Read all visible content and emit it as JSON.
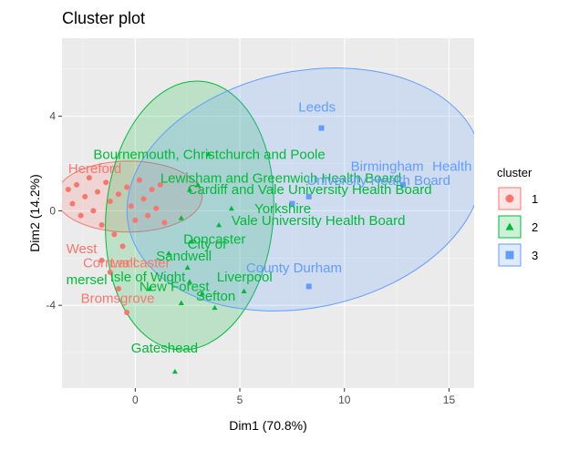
{
  "chart_data": {
    "type": "scatter",
    "title": "Cluster plot",
    "xlabel": "Dim1 (70.8%)",
    "ylabel": "Dim2 (14.2%)",
    "xlim": [
      -3.5,
      16.2
    ],
    "ylim": [
      -7.5,
      7.3
    ],
    "x_ticks": [
      0,
      5,
      10,
      15
    ],
    "y_ticks": [
      -4,
      0,
      4
    ],
    "grid": true,
    "legend": {
      "title": "cluster",
      "position": "right",
      "entries": [
        "1",
        "2",
        "3"
      ]
    },
    "colors": {
      "1": "#F8766D",
      "2": "#00BA38",
      "3": "#619CFF"
    },
    "series": [
      {
        "name": "1",
        "ellipse": {
          "cx": -0.3,
          "cy": 0.6,
          "rx": 3.5,
          "ry": 1.5,
          "angle": 0
        },
        "points": [
          {
            "x": -3.2,
            "y": 0.9
          },
          {
            "x": -3.0,
            "y": 0.3
          },
          {
            "x": -2.8,
            "y": 1.1
          },
          {
            "x": -2.6,
            "y": -0.2
          },
          {
            "x": -2.4,
            "y": 0.6
          },
          {
            "x": -2.2,
            "y": 1.4
          },
          {
            "x": -2.0,
            "y": 0.0
          },
          {
            "x": -1.8,
            "y": 0.8
          },
          {
            "x": -1.6,
            "y": -0.6
          },
          {
            "x": -1.4,
            "y": 1.2
          },
          {
            "x": -1.2,
            "y": 0.4
          },
          {
            "x": -1.0,
            "y": -1.0
          },
          {
            "x": -0.8,
            "y": 0.7
          },
          {
            "x": -0.6,
            "y": -1.5
          },
          {
            "x": -0.4,
            "y": 1.0
          },
          {
            "x": -0.2,
            "y": 0.2
          },
          {
            "x": 0.0,
            "y": -0.4
          },
          {
            "x": 0.2,
            "y": 1.3
          },
          {
            "x": 0.4,
            "y": 0.5
          },
          {
            "x": 0.6,
            "y": -0.2
          },
          {
            "x": 0.8,
            "y": 0.9
          },
          {
            "x": 1.0,
            "y": 0.1
          },
          {
            "x": 1.2,
            "y": 1.1
          },
          {
            "x": 1.4,
            "y": -0.5
          },
          {
            "x": -1.6,
            "y": -2.1
          },
          {
            "x": -1.2,
            "y": -2.6
          },
          {
            "x": -0.8,
            "y": -3.3
          },
          {
            "x": -0.4,
            "y": -4.3
          }
        ],
        "labels": [
          {
            "text": "Hereford",
            "x": -3.2,
            "y": 1.6
          },
          {
            "text": "West",
            "x": -3.3,
            "y": -1.8
          },
          {
            "text": "Cornwall",
            "x": -2.5,
            "y": -2.4
          },
          {
            "text": "Lancaster",
            "x": -1.2,
            "y": -2.4
          },
          {
            "text": "Bromsgrove",
            "x": -2.6,
            "y": -3.9
          }
        ]
      },
      {
        "name": "2",
        "ellipse": {
          "cx": 2.6,
          "cy": -0.2,
          "rx": 4.0,
          "ry": 5.7,
          "angle": -5
        },
        "points": [
          {
            "x": 3.5,
            "y": 2.4
          },
          {
            "x": 3.0,
            "y": 1.1
          },
          {
            "x": 2.6,
            "y": 0.9
          },
          {
            "x": 4.6,
            "y": 0.1
          },
          {
            "x": 2.2,
            "y": -0.3
          },
          {
            "x": 4.0,
            "y": -0.6
          },
          {
            "x": 2.7,
            "y": -1.3
          },
          {
            "x": 1.6,
            "y": -1.8
          },
          {
            "x": 2.5,
            "y": -2.4
          },
          {
            "x": 2.6,
            "y": -3.0
          },
          {
            "x": 5.2,
            "y": -3.4
          },
          {
            "x": 3.2,
            "y": -3.5
          },
          {
            "x": 0.7,
            "y": -3.3
          },
          {
            "x": 2.2,
            "y": -3.9
          },
          {
            "x": 3.8,
            "y": -4.1
          },
          {
            "x": 1.9,
            "y": -6.8
          }
        ],
        "labels": [
          {
            "text": "Bournemouth, Christchurch and Poole",
            "x": -2.0,
            "y": 2.2
          },
          {
            "text": "Doncaster",
            "x": 2.3,
            "y": -1.4
          },
          {
            "text": "Sandwell",
            "x": 1.0,
            "y": -2.1
          },
          {
            "text": "mersel",
            "x": -3.3,
            "y": -3.1
          },
          {
            "text": "Isle of Wight",
            "x": -1.2,
            "y": -3.0
          },
          {
            "text": "Liverpool",
            "x": 3.9,
            "y": -3.0
          },
          {
            "text": "New Forest",
            "x": 0.2,
            "y": -3.4
          },
          {
            "text": "Sefton",
            "x": 2.9,
            "y": -3.8
          },
          {
            "text": "Gateshead",
            "x": -0.2,
            "y": -6.0
          }
        ]
      },
      {
        "name": "3",
        "ellipse": {
          "cx": 8.1,
          "cy": 0.9,
          "rx": 8.6,
          "ry": 5.0,
          "angle": 12
        },
        "points": [
          {
            "x": 8.9,
            "y": 3.5
          },
          {
            "x": 12.8,
            "y": 1.1
          },
          {
            "x": 8.3,
            "y": 0.6
          },
          {
            "x": 7.5,
            "y": 0.3
          },
          {
            "x": 8.3,
            "y": -3.2
          }
        ],
        "labels": [
          {
            "text": "Leeds",
            "x": 7.8,
            "y": 4.2
          },
          {
            "text": "Birmingham",
            "x": 10.3,
            "y": 1.7
          },
          {
            "text": "County Durham",
            "x": 5.3,
            "y": -2.6
          }
        ]
      }
    ],
    "overplotted_labels": [
      {
        "text": "Lewisham and Greenwich Health Board",
        "color": "#00BA38",
        "x": 1.2,
        "y": 1.2
      },
      {
        "text": "Cardiff and Vale University Health Board",
        "color": "#00BA38",
        "x": 2.5,
        "y": 0.7
      },
      {
        "text": "Vale University Health Board",
        "color": "#00BA38",
        "x": 4.6,
        "y": -0.6
      },
      {
        "text": "Yorkshire",
        "color": "#00BA38",
        "x": 5.7,
        "y": -0.1
      },
      {
        "text": "University Health Board",
        "color": "#619CFF",
        "x": 8.2,
        "y": 1.1
      },
      {
        "text": "Health B",
        "color": "#619CFF",
        "x": 14.2,
        "y": 1.7
      },
      {
        "text": "City of",
        "color": "#00BA38",
        "x": 2.5,
        "y": -1.6
      }
    ]
  }
}
